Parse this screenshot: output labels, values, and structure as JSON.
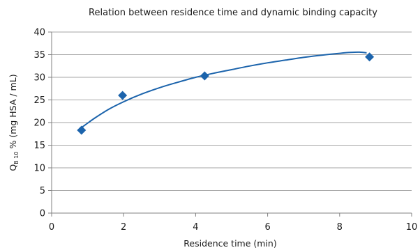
{
  "chart_data": {
    "type": "scatter",
    "title": "Relation between residence time and dynamic binding capacity",
    "xlabel": "Residence time (min)",
    "ylabel": {
      "main": "Q",
      "subscript": "B 10",
      "rest": " % (mg HSA / mL)"
    },
    "xlim": [
      0,
      10
    ],
    "ylim": [
      0,
      40
    ],
    "xticks": [
      "0",
      "2",
      "4",
      "6",
      "8",
      "10"
    ],
    "yticks": [
      "0",
      "5",
      "10",
      "15",
      "20",
      "25",
      "30",
      "35",
      "40"
    ],
    "grid": "horizontal",
    "legend": "none",
    "series": [
      {
        "marker": "diamond",
        "x": [
          0.83,
          1.97,
          4.25,
          8.83
        ],
        "y": [
          18.3,
          26.0,
          30.3,
          34.5
        ]
      }
    ],
    "trendline": {
      "x": [
        0.85,
        1.2,
        1.6,
        2.0,
        2.5,
        3.0,
        3.5,
        4.0,
        4.5,
        5.0,
        5.5,
        6.0,
        6.5,
        7.0,
        7.5,
        8.0,
        8.3,
        8.55,
        8.75
      ],
      "y": [
        19.0,
        21.0,
        23.0,
        24.6,
        26.3,
        27.7,
        28.9,
        30.0,
        30.9,
        31.7,
        32.5,
        33.2,
        33.8,
        34.4,
        34.9,
        35.3,
        35.5,
        35.55,
        35.4
      ]
    },
    "colors": {
      "series": "#1c64ac",
      "grid": "#a6a6a6",
      "axis": "#808080"
    }
  }
}
